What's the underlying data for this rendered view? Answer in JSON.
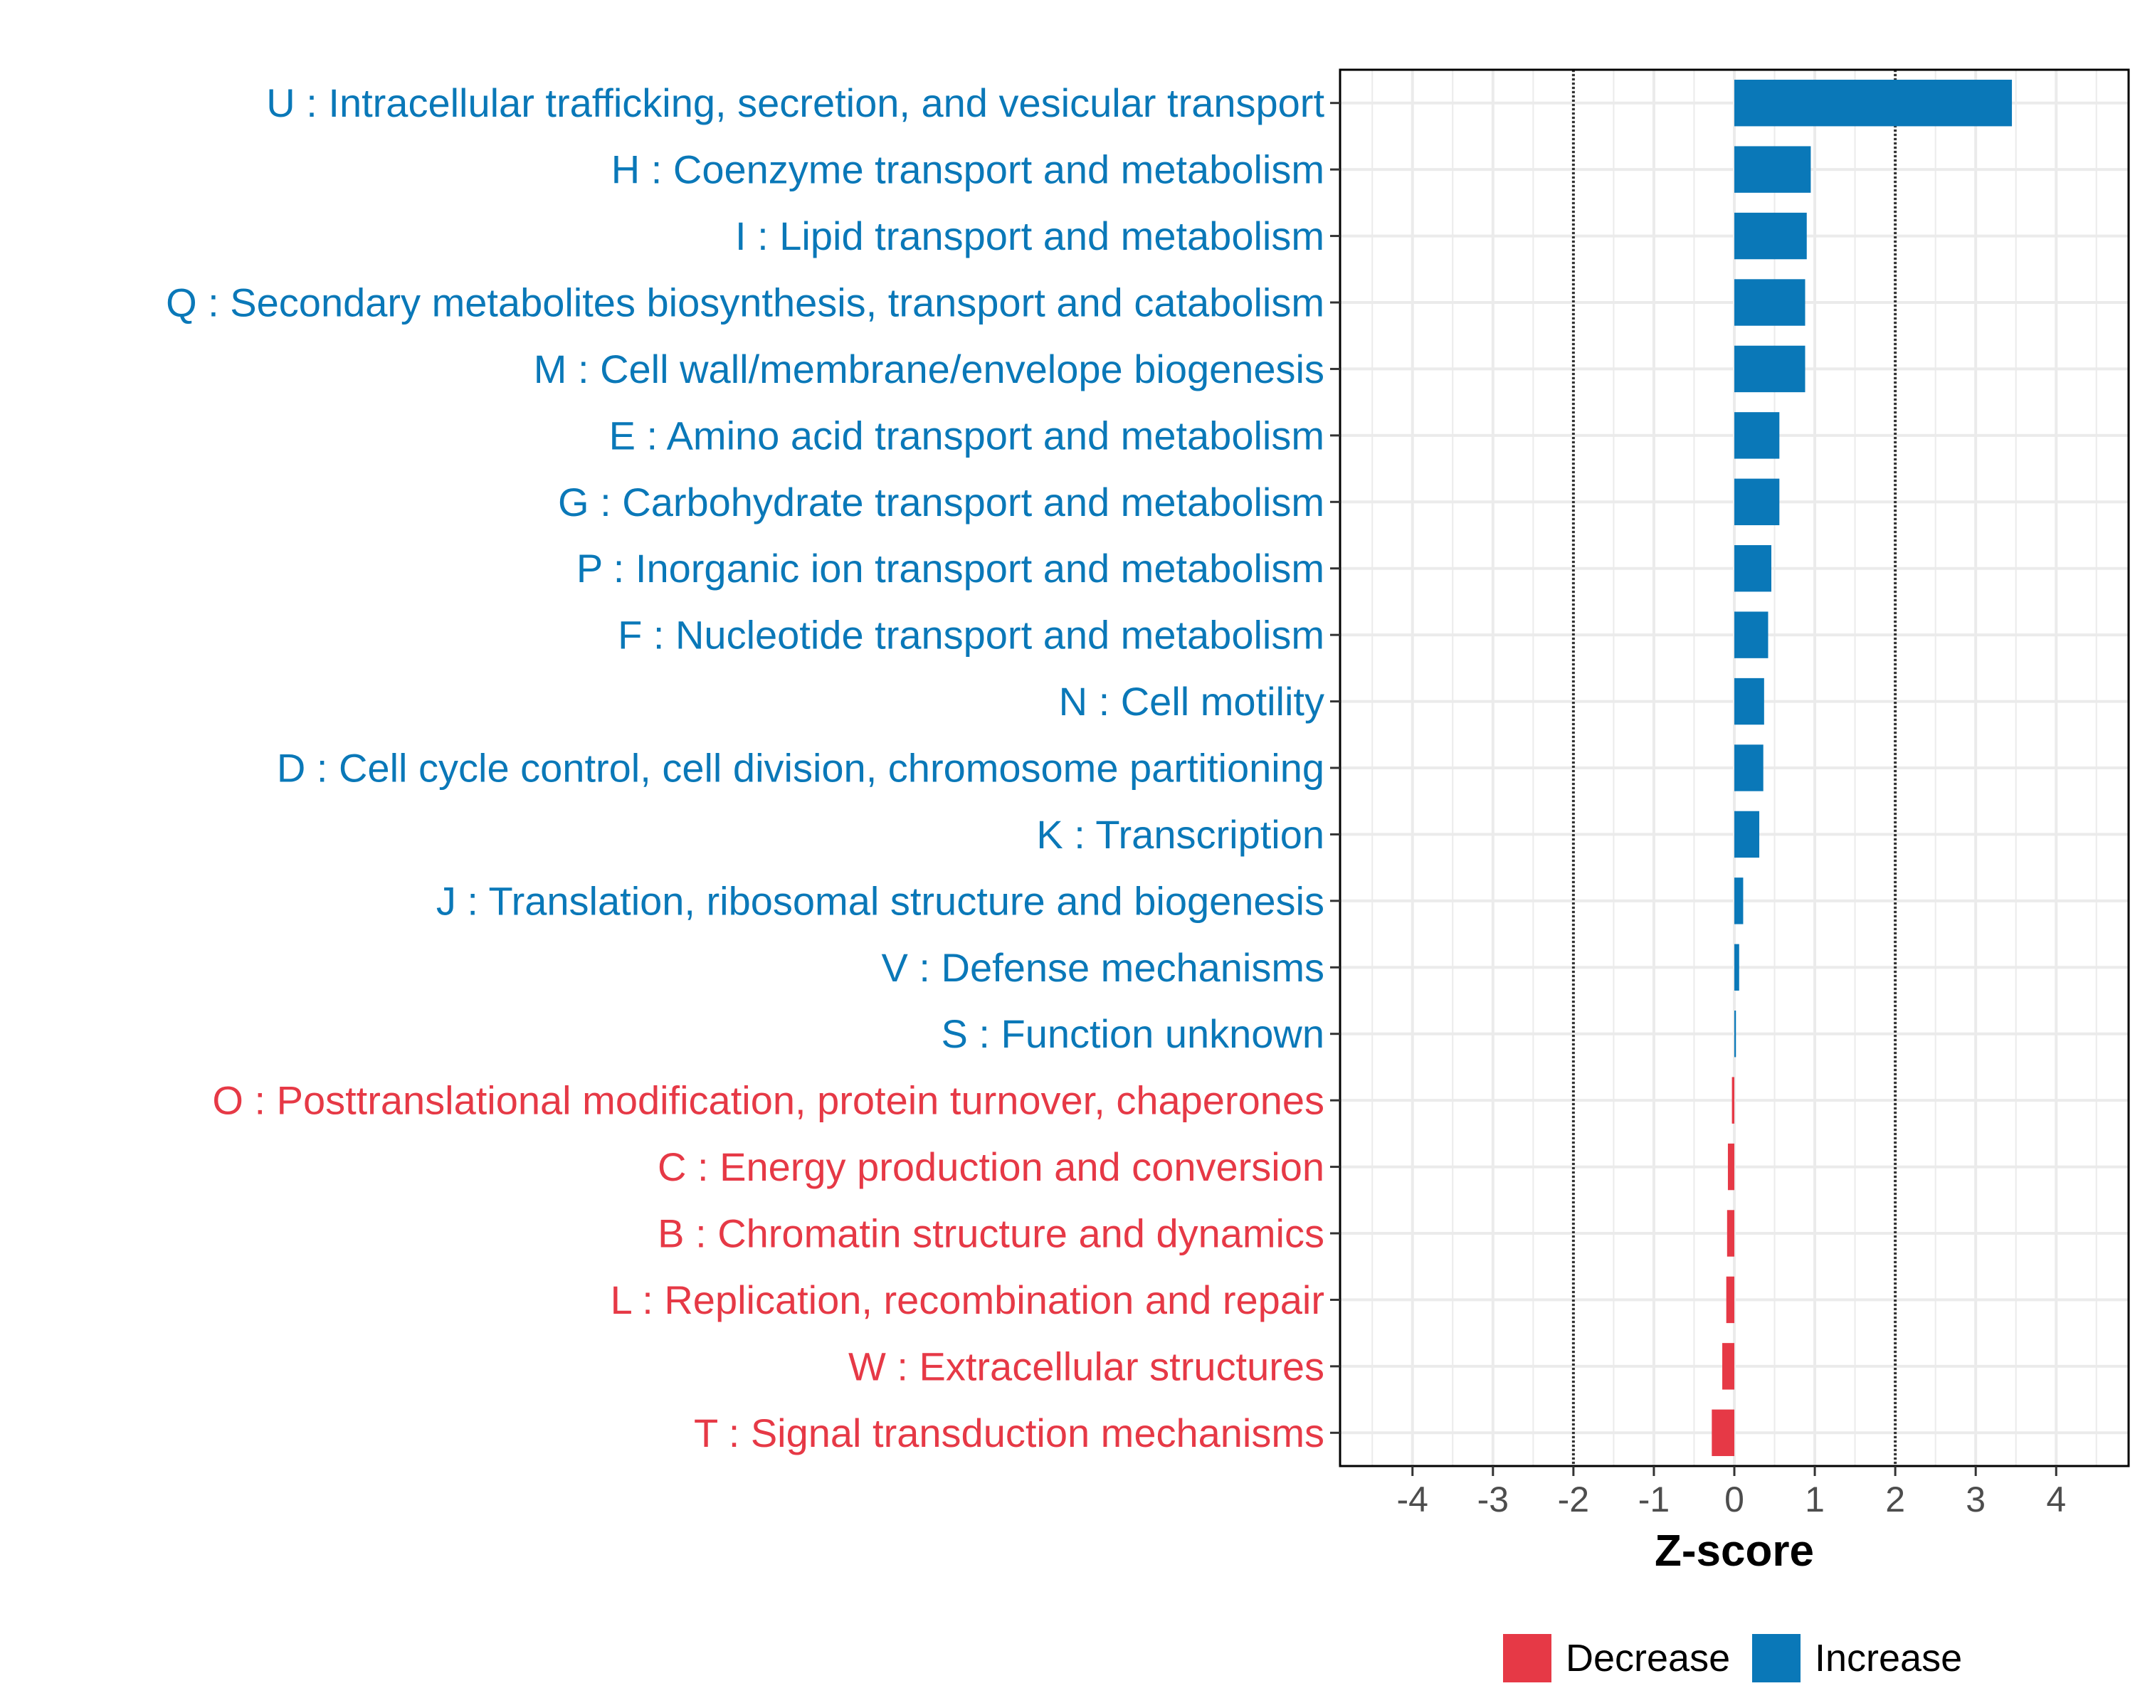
{
  "chart_data": {
    "type": "bar",
    "orientation": "horizontal",
    "xlabel": "Z-score",
    "xlim": [
      -4.9,
      4.9
    ],
    "xticks": [
      -4,
      -3,
      -2,
      -1,
      0,
      1,
      2,
      3,
      4
    ],
    "threshold_lines": [
      -2,
      2
    ],
    "categories": [
      "U : Intracellular trafficking, secretion, and vesicular transport",
      "H : Coenzyme transport and metabolism",
      "I : Lipid transport and metabolism",
      "Q : Secondary metabolites biosynthesis, transport and catabolism",
      "M : Cell wall/membrane/envelope biogenesis",
      "E : Amino acid transport and metabolism",
      "G : Carbohydrate transport and metabolism",
      "P : Inorganic ion transport and metabolism",
      "F : Nucleotide transport and metabolism",
      "N : Cell motility",
      "D : Cell cycle control, cell division, chromosome partitioning",
      "K : Transcription",
      "J : Translation, ribosomal structure and biogenesis",
      "V : Defense mechanisms",
      "S : Function unknown",
      "O : Posttranslational modification, protein turnover, chaperones",
      "C : Energy production and conversion",
      "B : Chromatin structure and dynamics",
      "L : Replication, recombination and repair",
      "W : Extracellular structures",
      "T : Signal transduction mechanisms"
    ],
    "values": [
      3.45,
      0.95,
      0.9,
      0.88,
      0.88,
      0.56,
      0.56,
      0.46,
      0.42,
      0.37,
      0.36,
      0.31,
      0.11,
      0.06,
      0.02,
      -0.03,
      -0.08,
      -0.09,
      -0.1,
      -0.15,
      -0.28
    ],
    "groups": [
      "Increase",
      "Increase",
      "Increase",
      "Increase",
      "Increase",
      "Increase",
      "Increase",
      "Increase",
      "Increase",
      "Increase",
      "Increase",
      "Increase",
      "Increase",
      "Increase",
      "Increase",
      "Decrease",
      "Decrease",
      "Decrease",
      "Decrease",
      "Decrease",
      "Decrease"
    ],
    "legend": {
      "position": "bottom",
      "entries": [
        {
          "label": "Decrease",
          "color": "#e63946"
        },
        {
          "label": "Increase",
          "color": "#0a78b8"
        }
      ]
    },
    "colors": {
      "Increase": "#0a78b8",
      "Decrease": "#e63946"
    },
    "grid": true
  }
}
